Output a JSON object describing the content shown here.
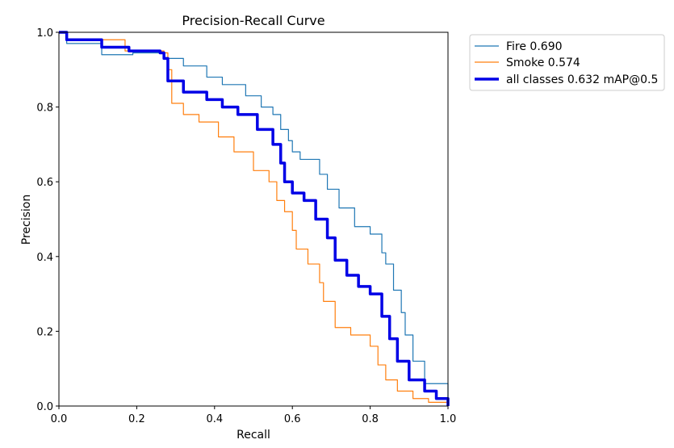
{
  "chart_data": {
    "type": "line",
    "title": "Precision-Recall Curve",
    "xlabel": "Recall",
    "ylabel": "Precision",
    "xlim": [
      0,
      1
    ],
    "ylim": [
      0,
      1
    ],
    "x_ticks": [
      "0.0",
      "0.2",
      "0.4",
      "0.6",
      "0.8",
      "1.0"
    ],
    "y_ticks": [
      "0.0",
      "0.2",
      "0.4",
      "0.6",
      "0.8",
      "1.0"
    ],
    "grid": false,
    "legend_position": "outside-right-top",
    "series": [
      {
        "name": "Fire 0.690",
        "color": "#1f77b4",
        "style": "thin",
        "points": [
          [
            0,
            1
          ],
          [
            0.02,
            0.99
          ],
          [
            0.02,
            0.97
          ],
          [
            0.11,
            0.97
          ],
          [
            0.11,
            0.94
          ],
          [
            0.18,
            0.94
          ],
          [
            0.19,
            0.945
          ],
          [
            0.26,
            0.945
          ],
          [
            0.27,
            0.93
          ],
          [
            0.32,
            0.91
          ],
          [
            0.38,
            0.88
          ],
          [
            0.42,
            0.86
          ],
          [
            0.48,
            0.83
          ],
          [
            0.52,
            0.8
          ],
          [
            0.55,
            0.78
          ],
          [
            0.57,
            0.74
          ],
          [
            0.59,
            0.71
          ],
          [
            0.6,
            0.68
          ],
          [
            0.62,
            0.66
          ],
          [
            0.67,
            0.62
          ],
          [
            0.69,
            0.58
          ],
          [
            0.72,
            0.53
          ],
          [
            0.76,
            0.48
          ],
          [
            0.8,
            0.46
          ],
          [
            0.83,
            0.41
          ],
          [
            0.84,
            0.38
          ],
          [
            0.86,
            0.31
          ],
          [
            0.88,
            0.25
          ],
          [
            0.89,
            0.19
          ],
          [
            0.91,
            0.12
          ],
          [
            0.94,
            0.06
          ],
          [
            1.0,
            0.0
          ]
        ]
      },
      {
        "name": "Smoke 0.574",
        "color": "#ff7f0e",
        "style": "thin",
        "points": [
          [
            0,
            1
          ],
          [
            0.02,
            0.98
          ],
          [
            0.17,
            0.98
          ],
          [
            0.17,
            0.95
          ],
          [
            0.27,
            0.945
          ],
          [
            0.28,
            0.9
          ],
          [
            0.29,
            0.81
          ],
          [
            0.32,
            0.78
          ],
          [
            0.36,
            0.76
          ],
          [
            0.41,
            0.72
          ],
          [
            0.45,
            0.68
          ],
          [
            0.5,
            0.63
          ],
          [
            0.54,
            0.6
          ],
          [
            0.56,
            0.55
          ],
          [
            0.58,
            0.52
          ],
          [
            0.6,
            0.47
          ],
          [
            0.61,
            0.42
          ],
          [
            0.64,
            0.38
          ],
          [
            0.67,
            0.33
          ],
          [
            0.68,
            0.28
          ],
          [
            0.71,
            0.21
          ],
          [
            0.75,
            0.19
          ],
          [
            0.8,
            0.16
          ],
          [
            0.82,
            0.11
          ],
          [
            0.84,
            0.07
          ],
          [
            0.87,
            0.04
          ],
          [
            0.91,
            0.02
          ],
          [
            0.95,
            0.01
          ],
          [
            1.0,
            0.0
          ]
        ]
      },
      {
        "name": "all classes 0.632 mAP@0.5",
        "color": "#0000e6",
        "style": "thick",
        "points": [
          [
            0,
            1
          ],
          [
            0.02,
            0.98
          ],
          [
            0.11,
            0.98
          ],
          [
            0.11,
            0.96
          ],
          [
            0.18,
            0.95
          ],
          [
            0.26,
            0.945
          ],
          [
            0.27,
            0.93
          ],
          [
            0.28,
            0.87
          ],
          [
            0.32,
            0.84
          ],
          [
            0.38,
            0.82
          ],
          [
            0.42,
            0.8
          ],
          [
            0.46,
            0.78
          ],
          [
            0.51,
            0.74
          ],
          [
            0.55,
            0.7
          ],
          [
            0.57,
            0.65
          ],
          [
            0.58,
            0.6
          ],
          [
            0.6,
            0.57
          ],
          [
            0.63,
            0.55
          ],
          [
            0.66,
            0.5
          ],
          [
            0.69,
            0.45
          ],
          [
            0.71,
            0.39
          ],
          [
            0.74,
            0.35
          ],
          [
            0.77,
            0.32
          ],
          [
            0.8,
            0.3
          ],
          [
            0.83,
            0.24
          ],
          [
            0.85,
            0.18
          ],
          [
            0.87,
            0.12
          ],
          [
            0.9,
            0.07
          ],
          [
            0.94,
            0.04
          ],
          [
            0.97,
            0.02
          ],
          [
            1.0,
            0.0
          ]
        ]
      }
    ]
  }
}
